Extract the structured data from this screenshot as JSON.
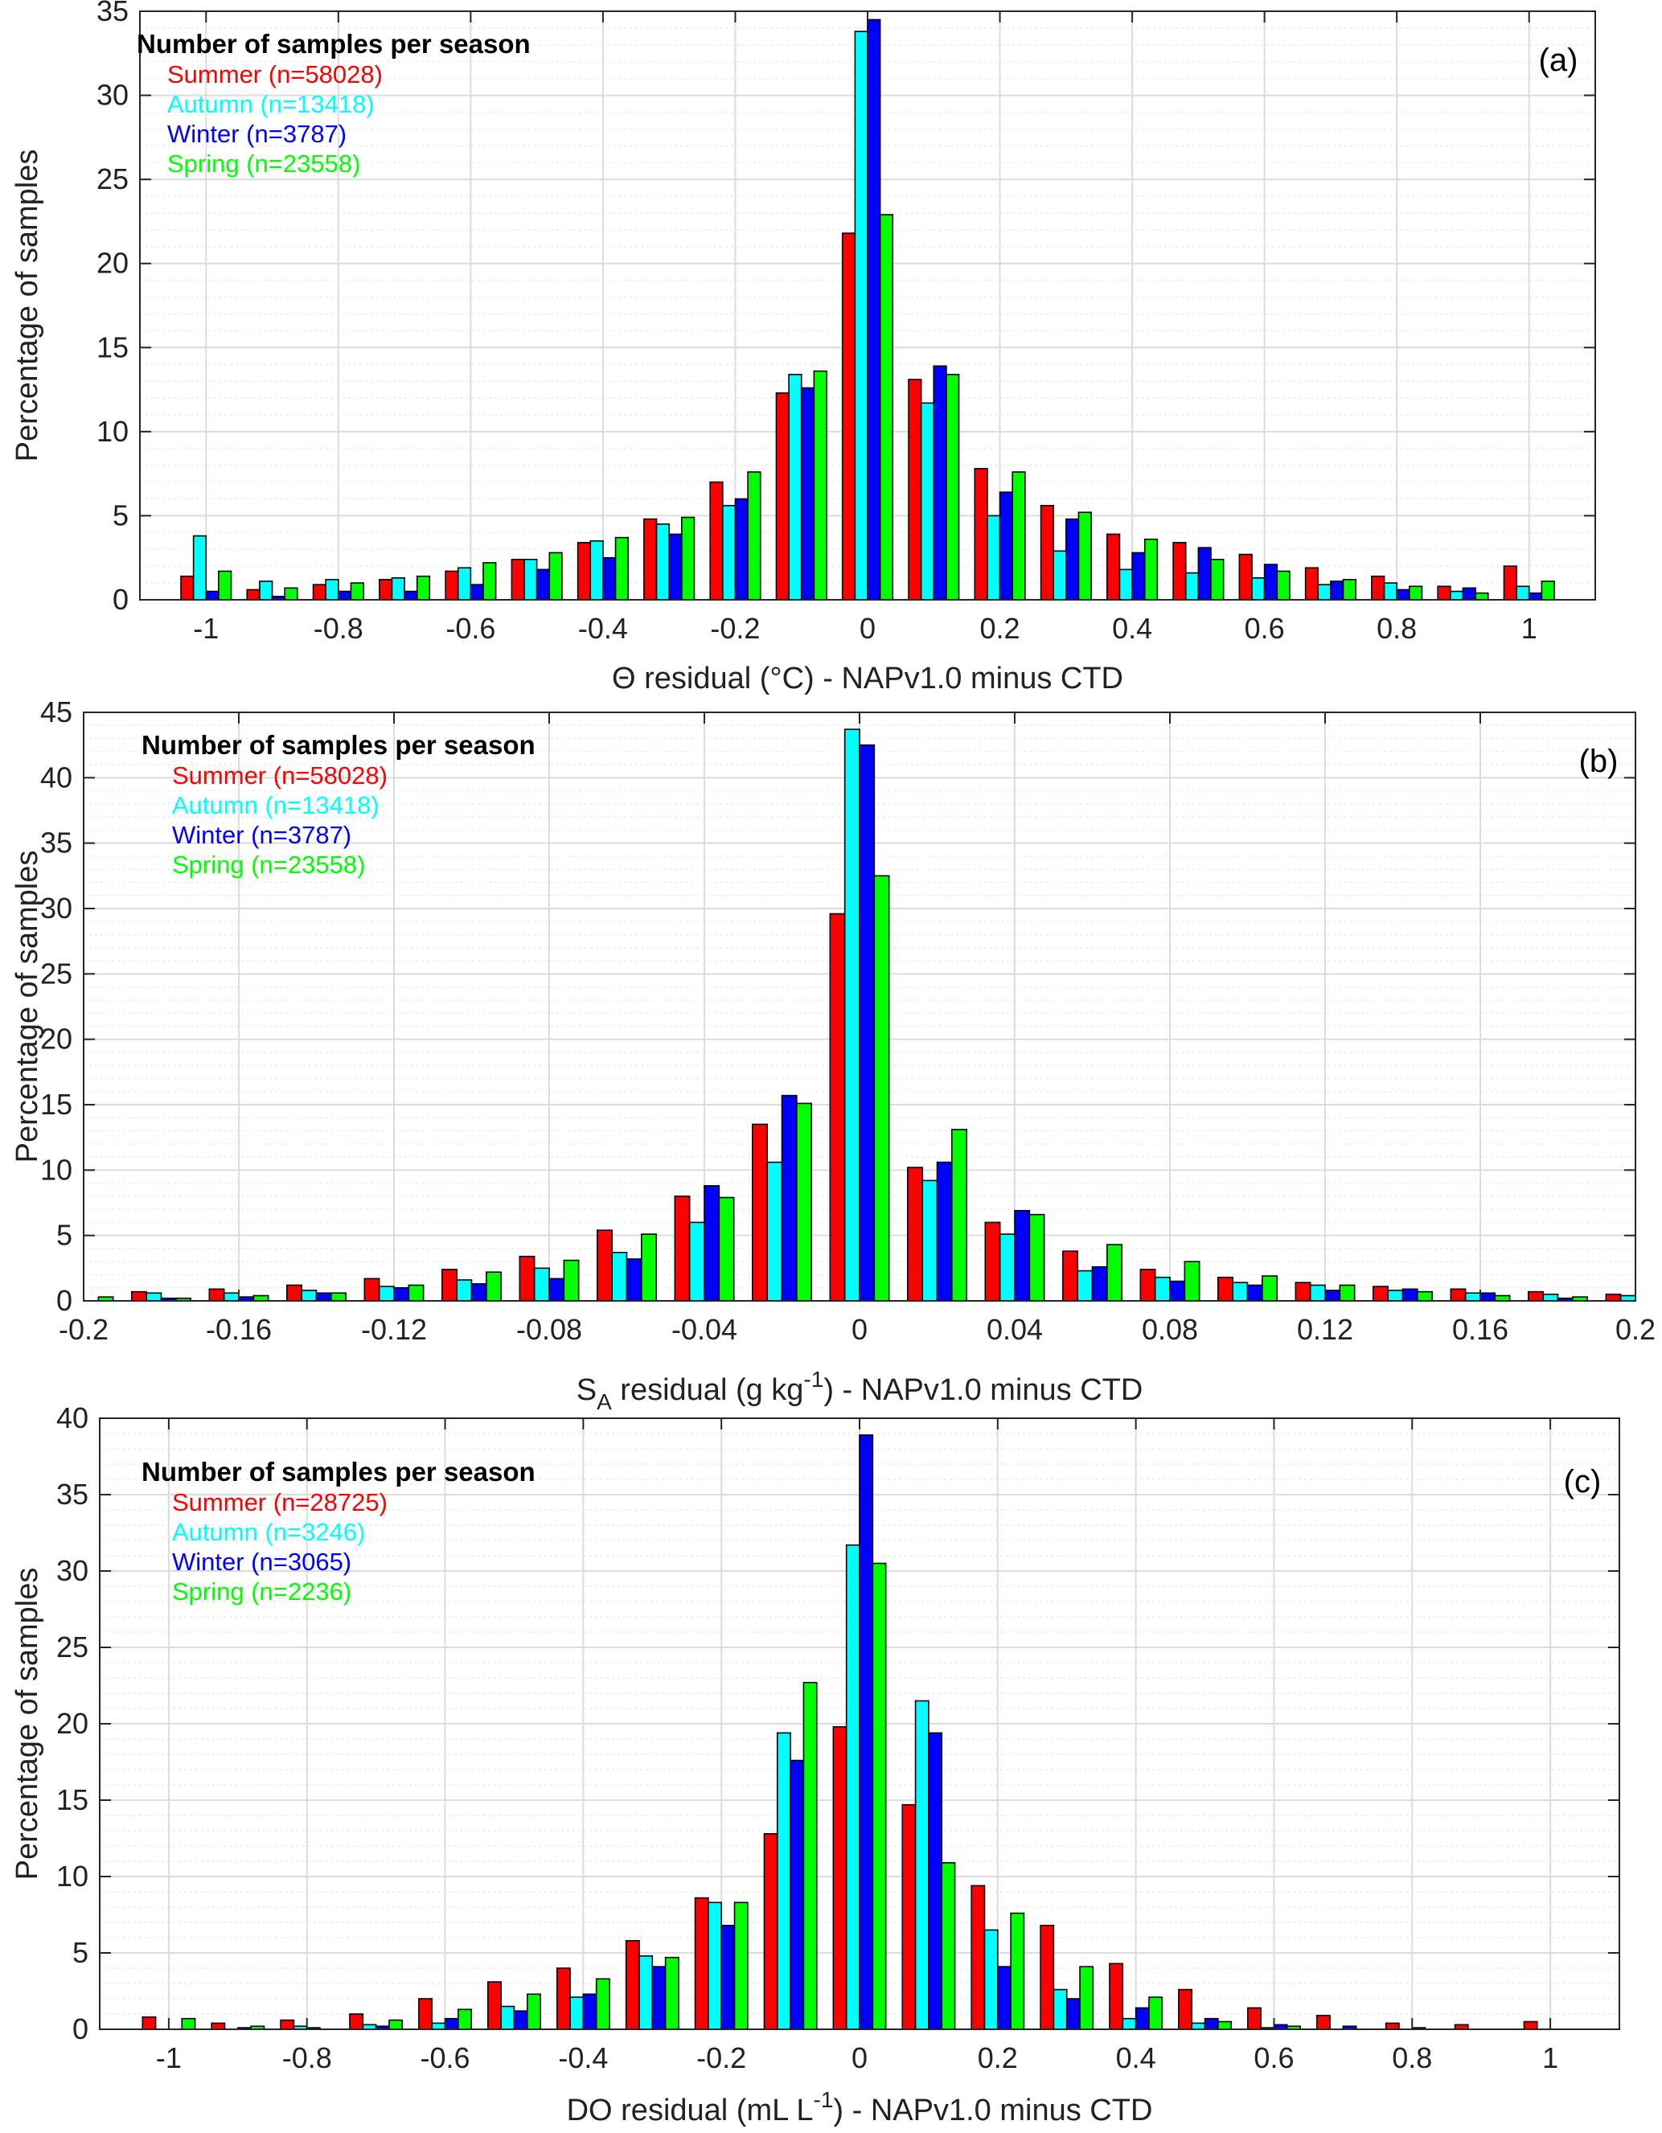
{
  "chart_data": [
    {
      "type": "bar",
      "panel_label": "(a)",
      "xlabel": "Θ residual (°C) - NAPv1.0 minus CTD",
      "ylabel": "Percentage of samples",
      "xlim": [
        -1.1,
        1.1
      ],
      "ylim": [
        0,
        35
      ],
      "xticks": [
        -1,
        -0.8,
        -0.6,
        -0.4,
        -0.2,
        0,
        0.2,
        0.4,
        0.6,
        0.8,
        1
      ],
      "xtick_labels": [
        "-1",
        "-0.8",
        "-0.6",
        "-0.4",
        "-0.2",
        "0",
        "0.2",
        "0.4",
        "0.6",
        "0.8",
        "1"
      ],
      "yticks": [
        0,
        5,
        10,
        15,
        20,
        25,
        30,
        35
      ],
      "ytick_labels": [
        "0",
        "5",
        "10",
        "15",
        "20",
        "25",
        "30",
        "35"
      ],
      "grid": true,
      "legend_title": "Number of samples per season",
      "legend_placement": "top-left",
      "bin_width": 0.1,
      "categories": [
        -1,
        -0.9,
        -0.8,
        -0.7,
        -0.6,
        -0.5,
        -0.4,
        -0.3,
        -0.2,
        -0.1,
        0,
        0.1,
        0.2,
        0.3,
        0.4,
        0.5,
        0.6,
        0.7,
        0.8,
        0.9,
        1
      ],
      "series": [
        {
          "name": "Summer (n=58028)",
          "color": "#ff0000",
          "values": [
            1.4,
            0.6,
            0.9,
            1.2,
            1.7,
            2.4,
            3.4,
            4.8,
            7.0,
            12.3,
            21.8,
            13.1,
            7.8,
            5.6,
            3.9,
            3.4,
            2.7,
            1.9,
            1.4,
            0.8,
            2.0
          ]
        },
        {
          "name": "Autumn (n=13418)",
          "color": "#00ffff",
          "values": [
            3.8,
            1.1,
            1.2,
            1.3,
            1.9,
            2.4,
            3.5,
            4.5,
            5.6,
            13.4,
            33.8,
            11.7,
            5.0,
            2.9,
            1.8,
            1.6,
            1.3,
            0.9,
            1.0,
            0.5,
            0.8
          ]
        },
        {
          "name": "Winter (n=3787)",
          "color": "#0000ff",
          "values": [
            0.5,
            0.2,
            0.5,
            0.5,
            0.9,
            1.8,
            2.5,
            3.9,
            6.0,
            12.6,
            34.5,
            13.9,
            6.4,
            4.8,
            2.8,
            3.1,
            2.1,
            1.1,
            0.6,
            0.7,
            0.4
          ]
        },
        {
          "name": "Spring (n=23558)",
          "color": "#00ff00",
          "values": [
            1.7,
            0.7,
            1.0,
            1.4,
            2.2,
            2.8,
            3.7,
            4.9,
            7.6,
            13.6,
            22.9,
            13.4,
            7.6,
            5.2,
            3.6,
            2.4,
            1.7,
            1.2,
            0.8,
            0.4,
            1.1
          ]
        }
      ]
    },
    {
      "type": "bar",
      "panel_label": "(b)",
      "xlabel": "S_A residual (g kg^-1) - NAPv1.0 minus CTD",
      "xlabel_parts": {
        "main": "S",
        "sub": "A",
        "mid": " residual (g kg",
        "sup": "-1",
        "end": ") - NAPv1.0 minus CTD"
      },
      "ylabel": "Percentage of samples",
      "xlim": [
        -0.2,
        0.2
      ],
      "ylim": [
        0,
        45
      ],
      "xticks": [
        -0.2,
        -0.16,
        -0.12,
        -0.08,
        -0.04,
        0,
        0.04,
        0.08,
        0.12,
        0.16,
        0.2
      ],
      "xtick_labels": [
        "-0.2",
        "-0.16",
        "-0.12",
        "-0.08",
        "-0.04",
        "0",
        "0.04",
        "0.08",
        "0.12",
        "0.16",
        "0.2"
      ],
      "yticks": [
        0,
        5,
        10,
        15,
        20,
        25,
        30,
        35,
        40,
        45
      ],
      "ytick_labels": [
        "0",
        "5",
        "10",
        "15",
        "20",
        "25",
        "30",
        "35",
        "40",
        "45"
      ],
      "grid": true,
      "legend_title": "Number of samples per season",
      "legend_placement": "top-left",
      "bin_width": 0.02,
      "categories": [
        -0.2,
        -0.18,
        -0.16,
        -0.14,
        -0.12,
        -0.1,
        -0.08,
        -0.06,
        -0.04,
        -0.02,
        0,
        0.02,
        0.04,
        0.06,
        0.08,
        0.1,
        0.12,
        0.14,
        0.16,
        0.18,
        0.2
      ],
      "series": [
        {
          "name": "Summer (n=58028)",
          "color": "#ff0000",
          "values": [
            0.0,
            0.7,
            0.9,
            1.2,
            1.7,
            2.4,
            3.4,
            5.4,
            8.0,
            13.5,
            29.6,
            10.2,
            6.0,
            3.8,
            2.4,
            1.8,
            1.4,
            1.1,
            0.9,
            0.7,
            0.5
          ]
        },
        {
          "name": "Autumn (n=13418)",
          "color": "#00ffff",
          "values": [
            0.0,
            0.6,
            0.6,
            0.8,
            1.1,
            1.6,
            2.5,
            3.7,
            6.0,
            10.6,
            43.7,
            9.2,
            5.1,
            2.3,
            1.8,
            1.4,
            1.2,
            0.8,
            0.6,
            0.5,
            0.4
          ]
        },
        {
          "name": "Winter (n=3787)",
          "color": "#0000ff",
          "values": [
            0.0,
            0.2,
            0.3,
            0.6,
            1.0,
            1.3,
            1.7,
            3.2,
            8.8,
            15.7,
            42.5,
            10.6,
            6.9,
            2.6,
            1.5,
            1.2,
            0.8,
            0.9,
            0.6,
            0.2,
            0.0
          ]
        },
        {
          "name": "Spring (n=23558)",
          "color": "#00ff00",
          "values": [
            0.3,
            0.2,
            0.4,
            0.6,
            1.2,
            2.2,
            3.1,
            5.1,
            7.9,
            15.1,
            32.5,
            13.1,
            6.6,
            4.3,
            3.0,
            1.9,
            1.2,
            0.7,
            0.4,
            0.3,
            0.0
          ]
        }
      ]
    },
    {
      "type": "bar",
      "panel_label": "(c)",
      "xlabel": "DO residual (mL L^-1) - NAPv1.0 minus CTD",
      "xlabel_parts": {
        "main": "DO residual (mL L",
        "sup": "-1",
        "end": ") - NAPv1.0 minus CTD"
      },
      "ylabel": "Percentage of samples",
      "xlim": [
        -1.1,
        1.1
      ],
      "ylim": [
        0,
        40
      ],
      "xticks": [
        -1,
        -0.8,
        -0.6,
        -0.4,
        -0.2,
        0,
        0.2,
        0.4,
        0.6,
        0.8,
        1
      ],
      "xtick_labels": [
        "-1",
        "-0.8",
        "-0.6",
        "-0.4",
        "-0.2",
        "0",
        "0.2",
        "0.4",
        "0.6",
        "0.8",
        "1"
      ],
      "yticks": [
        0,
        5,
        10,
        15,
        20,
        25,
        30,
        35,
        40
      ],
      "ytick_labels": [
        "0",
        "5",
        "10",
        "15",
        "20",
        "25",
        "30",
        "35",
        "40"
      ],
      "grid": true,
      "legend_title": "Number of samples per season",
      "legend_placement": "top-left",
      "bin_width": 0.1,
      "categories": [
        -1,
        -0.9,
        -0.8,
        -0.7,
        -0.6,
        -0.5,
        -0.4,
        -0.3,
        -0.2,
        -0.1,
        0,
        0.1,
        0.2,
        0.3,
        0.4,
        0.5,
        0.6,
        0.7,
        0.8,
        0.9,
        1
      ],
      "series": [
        {
          "name": "Summer (n=28725)",
          "color": "#ff0000",
          "values": [
            0.8,
            0.4,
            0.6,
            1.0,
            2.0,
            3.1,
            4.0,
            5.8,
            8.6,
            12.8,
            19.8,
            14.7,
            9.4,
            6.8,
            4.3,
            2.6,
            1.4,
            0.9,
            0.4,
            0.3,
            0.5
          ]
        },
        {
          "name": "Autumn (n=3246)",
          "color": "#00ffff",
          "values": [
            0.0,
            0.0,
            0.2,
            0.3,
            0.4,
            1.5,
            2.1,
            4.8,
            8.3,
            19.4,
            31.7,
            21.5,
            6.5,
            2.6,
            0.7,
            0.4,
            0.1,
            0.0,
            0.0,
            0.0,
            0.0
          ]
        },
        {
          "name": "Winter (n=3065)",
          "color": "#0000ff",
          "values": [
            0.0,
            0.1,
            0.1,
            0.2,
            0.7,
            1.2,
            2.3,
            4.1,
            6.8,
            17.6,
            38.9,
            19.4,
            4.1,
            2.0,
            1.4,
            0.7,
            0.3,
            0.2,
            0.1,
            0.0,
            0.0
          ]
        },
        {
          "name": "Spring (n=2236)",
          "color": "#00ff00",
          "values": [
            0.7,
            0.2,
            0.0,
            0.6,
            1.3,
            2.3,
            3.3,
            4.7,
            8.3,
            22.7,
            30.5,
            10.9,
            7.6,
            4.1,
            2.1,
            0.5,
            0.2,
            0.0,
            0.0,
            0.0,
            0.0
          ]
        }
      ]
    }
  ]
}
